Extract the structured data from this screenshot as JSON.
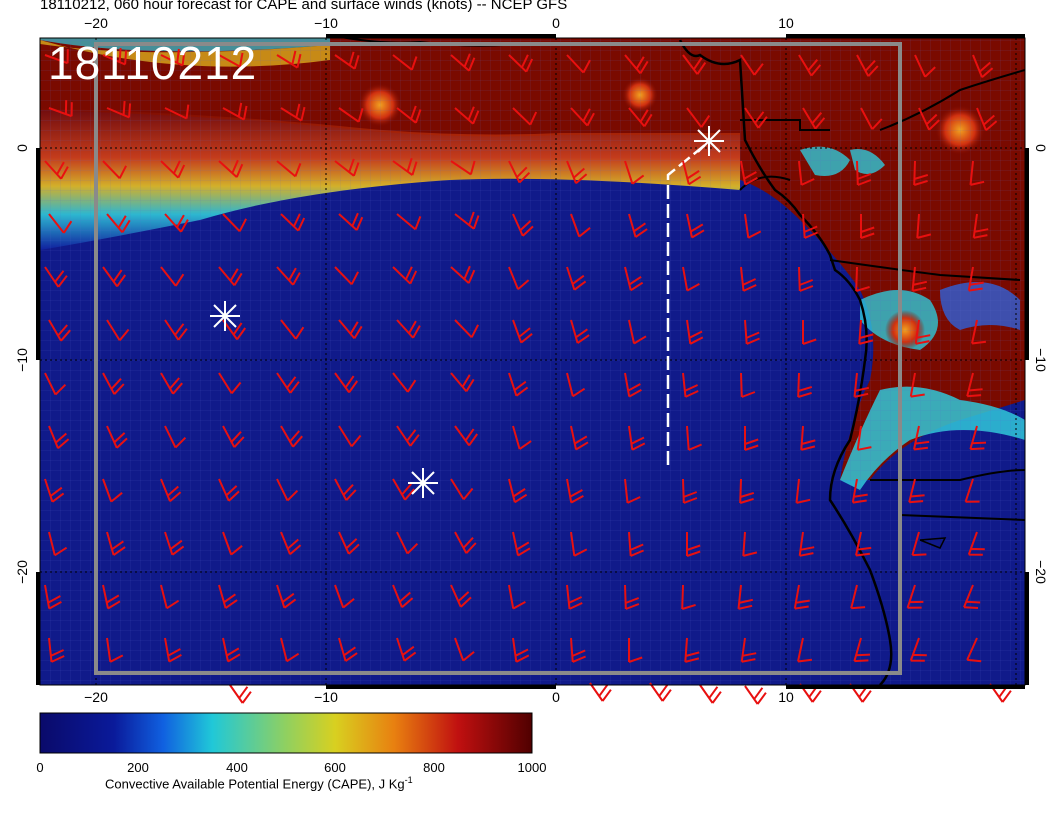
{
  "title": "18110212, 060 hour forecast for CAPE and surface winds (knots) -- NCEP GFS",
  "stamp": "18110212",
  "axes": {
    "top_ticks": [
      "−20",
      "−10",
      "0",
      "10"
    ],
    "bottom_ticks": [
      "−20",
      "−10",
      "0",
      "10"
    ],
    "left_ticks": [
      "0",
      "−10",
      "−20"
    ],
    "right_ticks": [
      "0",
      "−10",
      "−20"
    ]
  },
  "colorbar": {
    "ticks": [
      "0",
      "200",
      "400",
      "600",
      "800",
      "1000"
    ],
    "label": "Convective Available Potential Energy (CAPE), J Kg",
    "label_sup": "-1",
    "colors": [
      "#0a0a7a",
      "#1040d0",
      "#18c8d0",
      "#c8c820",
      "#e06010",
      "#a00000",
      "#600000"
    ]
  },
  "map": {
    "ocean_color": "#101a8a",
    "high_cape_color": "#7a0a00",
    "barb_color": "#e81010",
    "marker_color": "#ffffff",
    "markers": [
      "asterisk",
      "asterisk",
      "asterisk"
    ]
  }
}
